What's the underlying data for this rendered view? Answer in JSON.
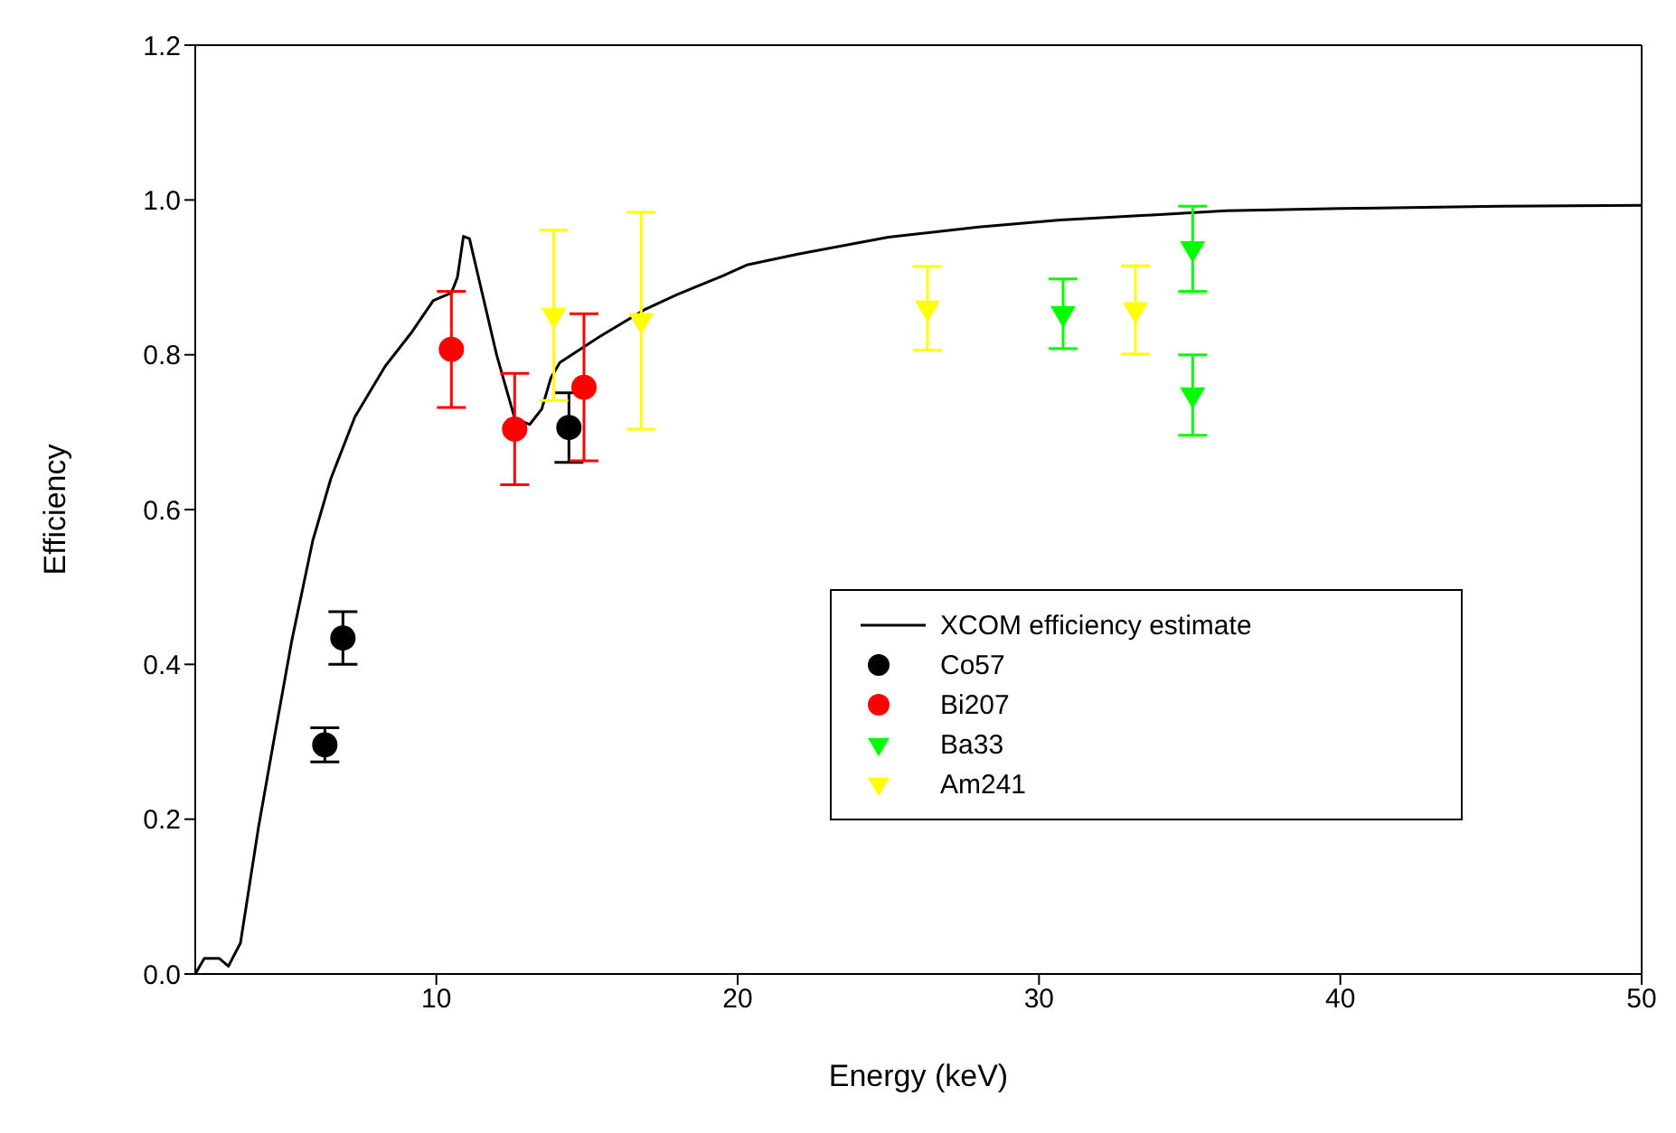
{
  "chart_data": {
    "type": "scatter",
    "xlabel": "Energy (keV)",
    "ylabel": "Efficiency",
    "xlim": [
      2,
      50
    ],
    "xticks": [
      10,
      20,
      30,
      40,
      50
    ],
    "ylim": [
      0,
      1.2
    ],
    "yticks": [
      {
        "value": 0,
        "label": "0.0"
      },
      0.2,
      0.4,
      0.6,
      0.8,
      {
        "value": 1,
        "label": "1.0"
      },
      1.2
    ],
    "legend": "right",
    "series": [
      {
        "name": "XCOM efficiency estimate",
        "type": "line",
        "color": "#000000",
        "marker": "none",
        "x": [
          2,
          2.3,
          2.8,
          3.1,
          3.5,
          4.1,
          4.6,
          5.2,
          5.9,
          6.5,
          7.3,
          8.3,
          9.2,
          9.9,
          10.5,
          10.7,
          10.9,
          11.1,
          11.4,
          12,
          12.6,
          13.1,
          13.5,
          13.8,
          14.1,
          15.4,
          16.9,
          18,
          19.5,
          20.3,
          22,
          25,
          28,
          30.7,
          36.2,
          40,
          45.3,
          50
        ],
        "values": [
          0,
          0.02,
          0.02,
          0.01,
          0.04,
          0.19,
          0.3,
          0.43,
          0.56,
          0.64,
          0.72,
          0.785,
          0.83,
          0.87,
          0.88,
          0.9,
          0.953,
          0.95,
          0.9,
          0.8,
          0.718,
          0.71,
          0.73,
          0.77,
          0.79,
          0.823,
          0.858,
          0.878,
          0.902,
          0.916,
          0.93,
          0.952,
          0.965,
          0.974,
          0.986,
          0.989,
          0.992,
          0.993
        ]
      },
      {
        "name": "Co57",
        "color": "#000000",
        "marker": "circle",
        "x": [
          6.3,
          6.9,
          14.4
        ],
        "values": [
          0.296,
          0.434,
          0.706
        ],
        "errors": [
          0.022,
          0.034,
          0.045
        ]
      },
      {
        "name": "Bi207",
        "color": "#ff0000",
        "marker": "circle",
        "x": [
          10.5,
          12.6,
          14.9
        ],
        "values": [
          0.807,
          0.704,
          0.758
        ],
        "errors": [
          0.075,
          0.072,
          0.095
        ]
      },
      {
        "name": "Ba33",
        "color": "#00ff00",
        "marker": "triangle",
        "x": [
          30.8,
          35.1,
          35.1
        ],
        "values": [
          0.853,
          0.937,
          0.748
        ],
        "errors": [
          0.045,
          0.055,
          0.052
        ]
      },
      {
        "name": "Am241",
        "color": "#ffff00",
        "marker": "triangle",
        "x": [
          13.9,
          16.8,
          26.3,
          33.2
        ],
        "values": [
          0.851,
          0.844,
          0.86,
          0.858
        ],
        "errors": [
          0.11,
          0.14,
          0.054,
          0.057
        ]
      }
    ]
  }
}
